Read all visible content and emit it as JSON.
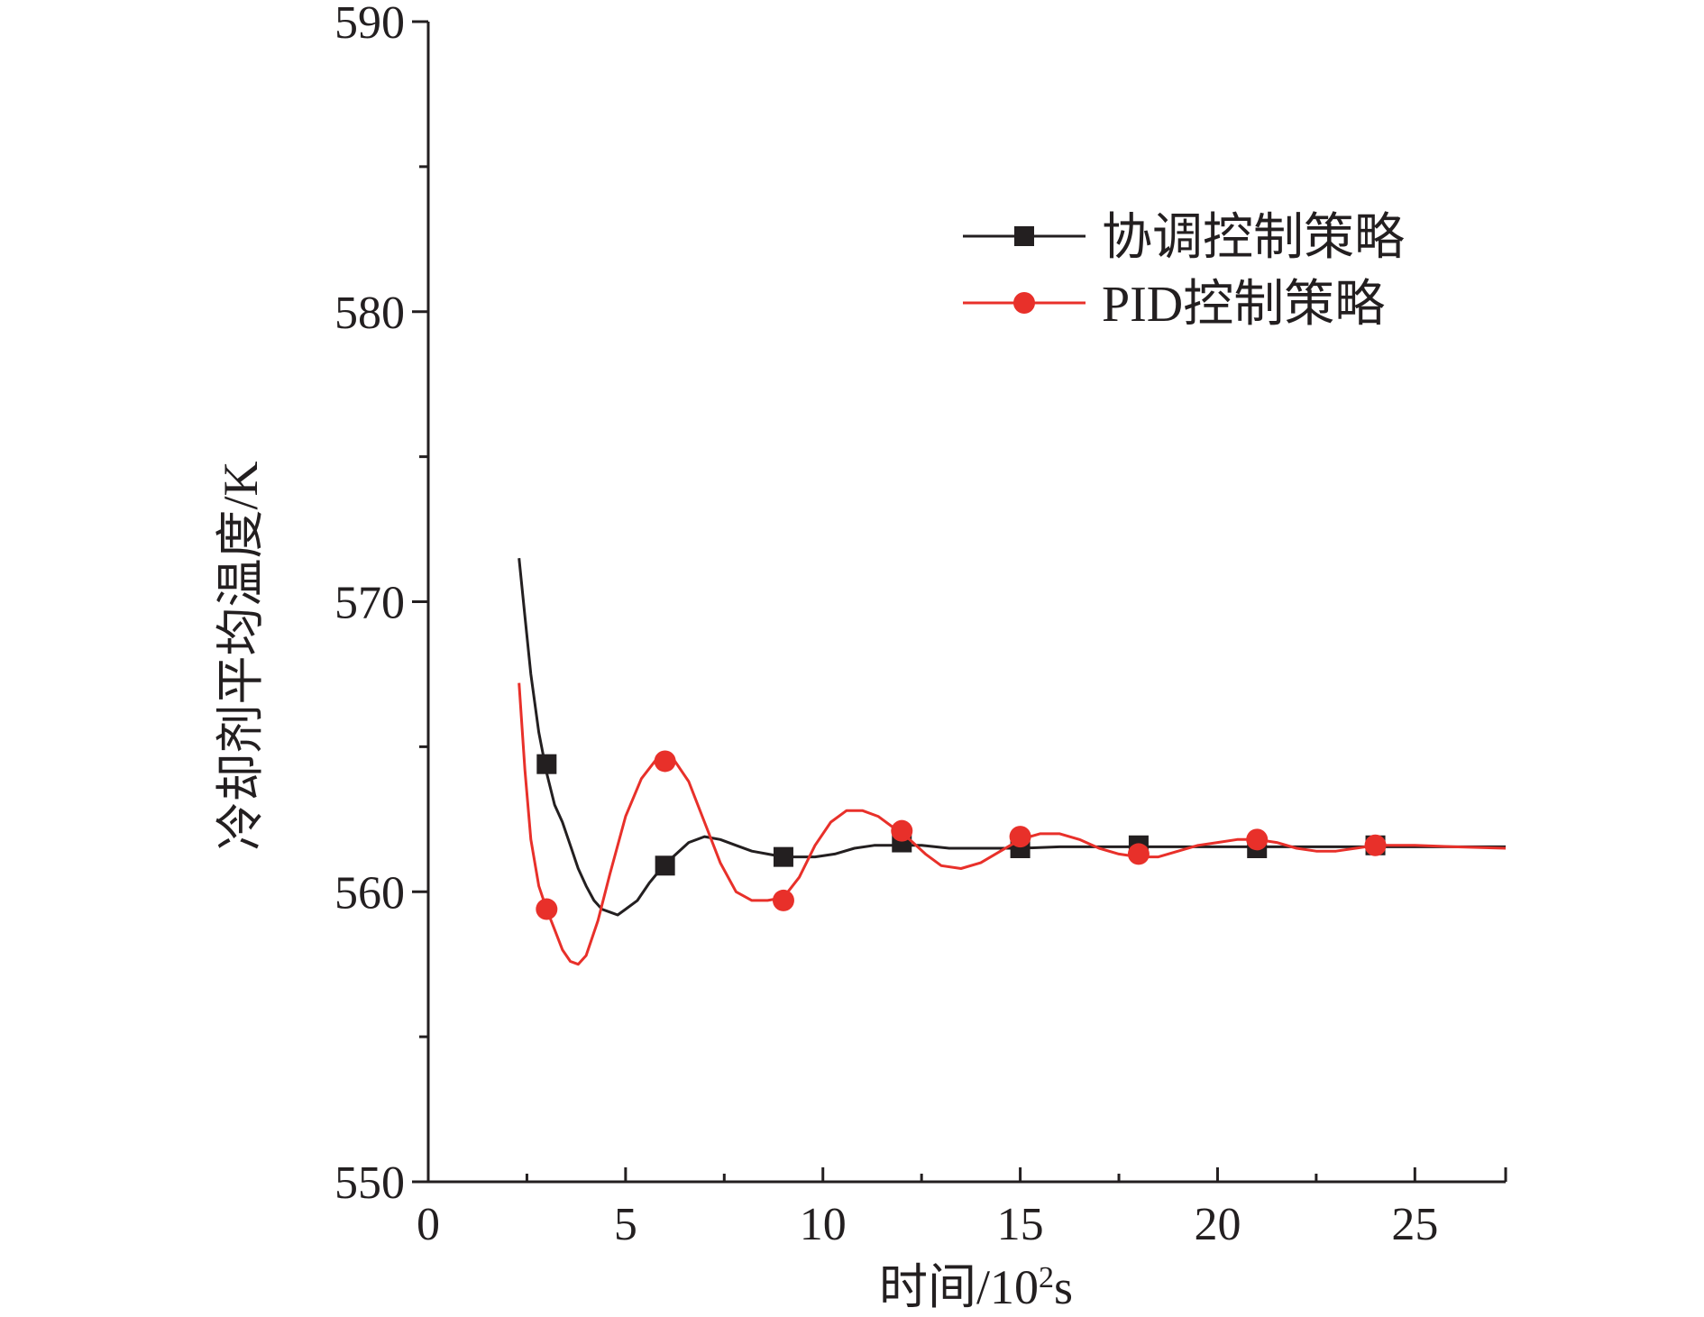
{
  "chart_data": {
    "type": "line",
    "title": "",
    "xlabel": "时间/10²s",
    "ylabel": "冷却剂平均温度/K",
    "xlim": [
      0,
      27.3
    ],
    "ylim": [
      550,
      590
    ],
    "x_ticks": [
      0,
      5,
      10,
      15,
      20,
      25
    ],
    "y_ticks": [
      550,
      560,
      570,
      580,
      590
    ],
    "x_tick_labels": [
      "0",
      "5",
      "10",
      "15",
      "20",
      "25"
    ],
    "y_tick_labels": [
      "550",
      "560",
      "570",
      "580",
      "590"
    ],
    "legend": {
      "placement": "top-right"
    },
    "grid": false,
    "series": [
      {
        "name": "协调控制策略",
        "color": "#231f20",
        "marker": "square",
        "x": [
          2.3,
          2.45,
          2.6,
          2.8,
          3.0,
          3.2,
          3.4,
          3.6,
          3.8,
          4.0,
          4.2,
          4.4,
          4.6,
          4.8,
          5.0,
          5.3,
          5.6,
          5.9,
          6.2,
          6.6,
          7.0,
          7.4,
          7.8,
          8.2,
          8.6,
          9.0,
          9.4,
          9.8,
          10.3,
          10.8,
          11.3,
          11.8,
          12.5,
          13.2,
          14.0,
          15.0,
          16.0,
          17.0,
          18.0,
          19.0,
          20.0,
          21.0,
          22.0,
          23.0,
          24.0,
          25.0,
          26.0,
          27.3
        ],
        "values": [
          571.5,
          569.5,
          567.5,
          565.5,
          564.1,
          563.0,
          562.4,
          561.6,
          560.8,
          560.2,
          559.7,
          559.4,
          559.3,
          559.2,
          559.4,
          559.7,
          560.3,
          560.8,
          561.2,
          561.7,
          561.9,
          561.8,
          561.6,
          561.4,
          561.3,
          561.2,
          561.2,
          561.2,
          561.3,
          561.5,
          561.6,
          561.6,
          561.6,
          561.5,
          561.5,
          561.5,
          561.55,
          561.55,
          561.55,
          561.55,
          561.55,
          561.55,
          561.55,
          561.55,
          561.55,
          561.55,
          561.55,
          561.55
        ],
        "marker_x": [
          3.0,
          6.0,
          9.0,
          12.0,
          15.0,
          18.0,
          21.0,
          24.0
        ],
        "marker_values": [
          564.4,
          560.9,
          561.2,
          561.7,
          561.5,
          561.6,
          561.5,
          561.6
        ]
      },
      {
        "name": "PID控制策略",
        "color": "#e8302a",
        "marker": "circle",
        "x": [
          2.3,
          2.45,
          2.6,
          2.8,
          3.0,
          3.2,
          3.4,
          3.6,
          3.8,
          4.0,
          4.3,
          4.6,
          5.0,
          5.4,
          5.8,
          6.2,
          6.6,
          7.0,
          7.4,
          7.8,
          8.2,
          8.6,
          9.0,
          9.4,
          9.8,
          10.2,
          10.6,
          11.0,
          11.4,
          11.8,
          12.2,
          12.6,
          13.0,
          13.5,
          14.0,
          14.5,
          15.0,
          15.5,
          16.0,
          16.5,
          17.0,
          17.5,
          18.0,
          18.5,
          19.0,
          19.5,
          20.0,
          20.5,
          21.0,
          21.5,
          22.0,
          22.5,
          23.0,
          23.5,
          24.0,
          24.5,
          25.0,
          26.0,
          27.3
        ],
        "values": [
          567.2,
          564.2,
          561.8,
          560.2,
          559.4,
          558.7,
          558.0,
          557.6,
          557.5,
          557.8,
          559.0,
          560.6,
          562.6,
          563.9,
          564.6,
          564.6,
          563.8,
          562.4,
          561.0,
          560.0,
          559.7,
          559.7,
          559.8,
          560.5,
          561.6,
          562.4,
          562.8,
          562.8,
          562.6,
          562.2,
          561.8,
          561.3,
          560.9,
          560.8,
          561.0,
          561.4,
          561.8,
          562.0,
          562.0,
          561.8,
          561.5,
          561.3,
          561.2,
          561.2,
          561.4,
          561.6,
          561.7,
          561.8,
          561.8,
          561.7,
          561.5,
          561.4,
          561.4,
          561.5,
          561.6,
          561.6,
          561.6,
          561.55,
          561.5
        ],
        "marker_x": [
          3.0,
          6.0,
          9.0,
          12.0,
          15.0,
          18.0,
          21.0,
          24.0
        ],
        "marker_values": [
          559.4,
          564.5,
          559.7,
          562.1,
          561.9,
          561.3,
          561.8,
          561.6
        ]
      }
    ]
  }
}
